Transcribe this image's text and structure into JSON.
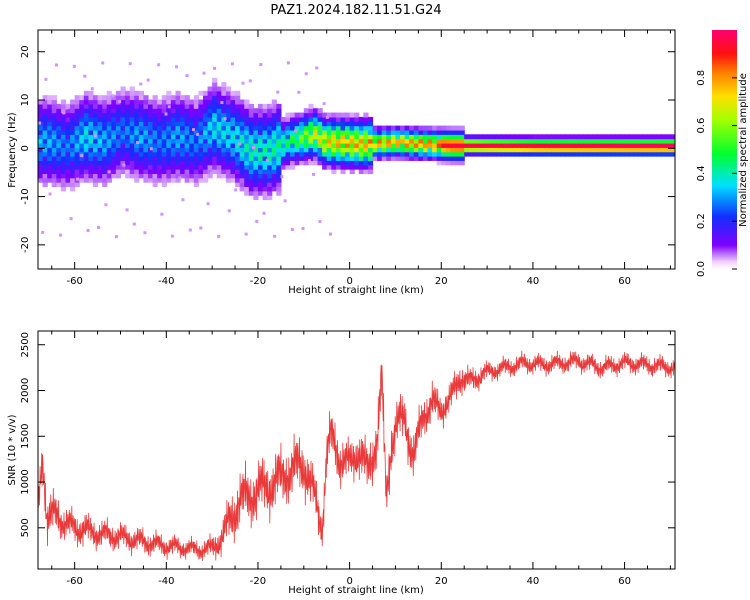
{
  "figure": {
    "title": "PAZ1.2024.182.11.51.G24"
  },
  "chart_data": [
    {
      "type": "heatmap",
      "xlabel": "Height of straight line (km)",
      "ylabel": "Frequency (Hz)",
      "xlim": [
        -68,
        71
      ],
      "ylim": [
        -25,
        24.5
      ],
      "xticks": [
        "-60",
        "-40",
        "-20",
        "0",
        "20",
        "40",
        "60"
      ],
      "xtick_values": [
        -60,
        -40,
        -20,
        0,
        20,
        40,
        60
      ],
      "yticks": [
        "20",
        "10",
        "0",
        "-10",
        "-20"
      ],
      "ytick_values": [
        20,
        10,
        0,
        -10,
        -20
      ],
      "colorbar": {
        "label": "Normalized spectral amplitude",
        "range": [
          0,
          1
        ],
        "ticks": [
          "0.0",
          "0.2",
          "0.4",
          "0.6",
          "0.8"
        ],
        "tick_values": [
          0.0,
          0.2,
          0.4,
          0.6,
          0.8
        ],
        "colormap": "gist_rainbow_r"
      },
      "ridge": {
        "x": [
          -66,
          -62,
          -58,
          -54,
          -50,
          -46,
          -42,
          -38,
          -34,
          -30,
          -26,
          -22,
          -18,
          -14,
          -10,
          -8,
          -6,
          -2,
          2,
          6,
          10,
          14,
          18,
          22,
          30,
          40,
          50,
          60,
          71
        ],
        "y": [
          1,
          0,
          2,
          1,
          3,
          2,
          1,
          2,
          1,
          4,
          2,
          -1,
          -1,
          1,
          2,
          2.5,
          1,
          0.8,
          0.5,
          0.7,
          0.9,
          0.6,
          0.4,
          0.2,
          0.1,
          0,
          0,
          0,
          0
        ],
        "amplitude": [
          0.35,
          0.3,
          0.4,
          0.35,
          0.3,
          0.35,
          0.3,
          0.35,
          0.3,
          0.4,
          0.4,
          0.45,
          0.45,
          0.5,
          0.65,
          0.75,
          0.8,
          0.85,
          0.85,
          0.88,
          0.88,
          0.9,
          0.92,
          0.95,
          0.97,
          0.98,
          0.99,
          1.0,
          1.0
        ]
      }
    },
    {
      "type": "line",
      "xlabel": "Height of straight line (km)",
      "ylabel": "SNR (10 * v/v)",
      "xlim": [
        -68,
        71
      ],
      "ylim": [
        50,
        2650
      ],
      "xticks": [
        "-60",
        "-40",
        "-20",
        "0",
        "20",
        "40",
        "60"
      ],
      "xtick_values": [
        -60,
        -40,
        -20,
        0,
        20,
        40,
        60
      ],
      "yticks": [
        "2500",
        "2000",
        "1500",
        "1000",
        "500"
      ],
      "ytick_values": [
        2500,
        2000,
        1500,
        1000,
        500
      ],
      "color": "#e83a3a",
      "series": [
        {
          "x": [
            -68,
            -67,
            -66,
            -64,
            -62,
            -60,
            -58,
            -56,
            -54,
            -52,
            -50,
            -48,
            -46,
            -44,
            -42,
            -40,
            -38,
            -36,
            -34,
            -32,
            -30,
            -28,
            -26,
            -24,
            -22,
            -20,
            -18,
            -16,
            -14,
            -12,
            -10,
            -8,
            -6,
            -5,
            -4,
            -2,
            0,
            2,
            4,
            6,
            7,
            8,
            9,
            10,
            12,
            14,
            16,
            18,
            20,
            22,
            24,
            26,
            28,
            30,
            34,
            38,
            42,
            46,
            50,
            55,
            60,
            65,
            71
          ],
          "y": [
            700,
            1300,
            600,
            650,
            550,
            500,
            480,
            450,
            430,
            420,
            400,
            380,
            360,
            340,
            320,
            300,
            290,
            280,
            270,
            260,
            280,
            380,
            600,
            800,
            850,
            900,
            950,
            1000,
            1100,
            1150,
            1200,
            900,
            500,
            1300,
            1500,
            1250,
            1200,
            1350,
            1100,
            1500,
            2100,
            800,
            1400,
            1600,
            1700,
            1250,
            1750,
            1850,
            1800,
            1900,
            2150,
            2100,
            2150,
            2200,
            2250,
            2300,
            2280,
            2300,
            2320,
            2250,
            2300,
            2280,
            2250
          ],
          "spread": [
            250,
            300,
            300,
            250,
            200,
            200,
            200,
            180,
            170,
            170,
            160,
            160,
            150,
            150,
            140,
            130,
            130,
            120,
            120,
            120,
            150,
            200,
            300,
            350,
            350,
            350,
            350,
            350,
            350,
            350,
            350,
            300,
            250,
            300,
            300,
            300,
            250,
            300,
            300,
            350,
            400,
            300,
            350,
            300,
            300,
            300,
            250,
            250,
            200,
            200,
            200,
            150,
            150,
            120,
            120,
            120,
            120,
            120,
            120,
            120,
            120,
            120,
            120
          ]
        }
      ]
    }
  ]
}
